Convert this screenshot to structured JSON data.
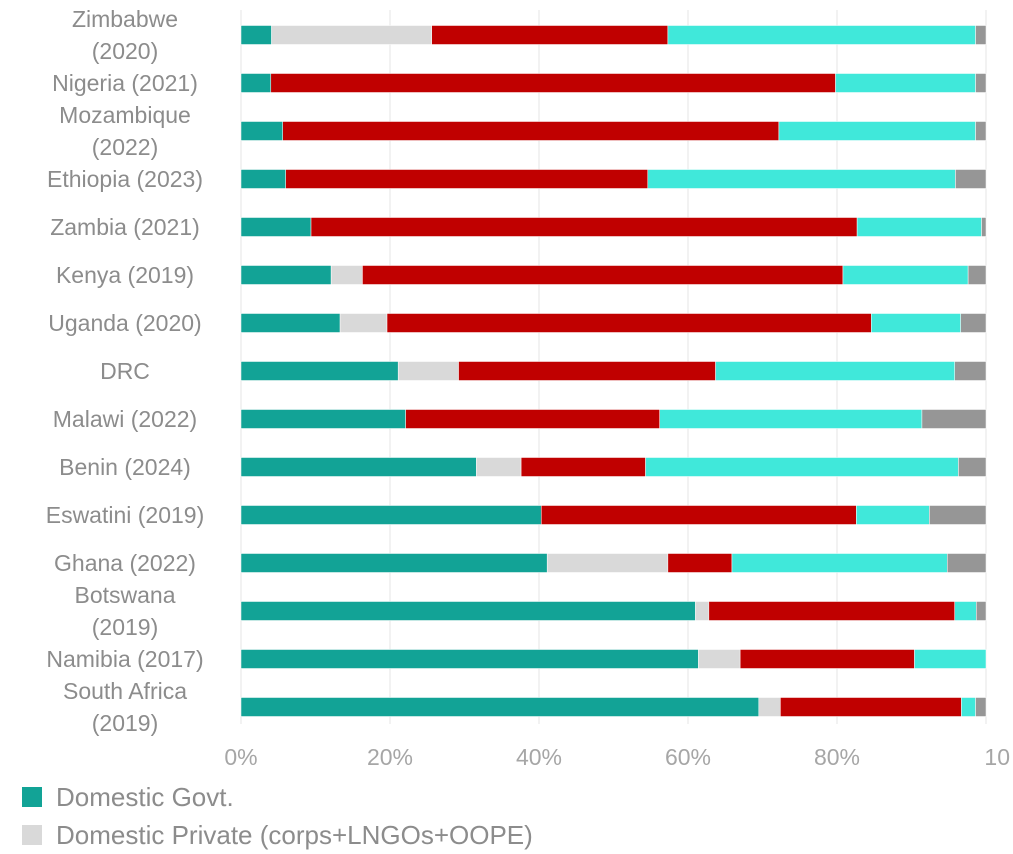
{
  "chart_data": {
    "type": "bar",
    "orientation": "horizontal",
    "stacked": "percent",
    "categories": [
      "Zimbabwe (2020)",
      "Nigeria (2021)",
      "Mozambique (2022)",
      "Ethiopia (2023)",
      "Zambia (2021)",
      "Kenya (2019)",
      "Uganda (2020)",
      "DRC",
      "Malawi (2022)",
      "Benin (2024)",
      "Eswatini (2019)",
      "Ghana (2022)",
      "Botswana (2019)",
      "Namibia (2017)",
      "South Africa (2019)"
    ],
    "category_lines": [
      [
        "Zimbabwe",
        "(2020)"
      ],
      [
        "Nigeria (2021)"
      ],
      [
        "Mozambique",
        "(2022)"
      ],
      [
        "Ethiopia (2023)"
      ],
      [
        "Zambia (2021)"
      ],
      [
        "Kenya (2019)"
      ],
      [
        "Uganda (2020)"
      ],
      [
        "DRC"
      ],
      [
        "Malawi (2022)"
      ],
      [
        "Benin (2024)"
      ],
      [
        "Eswatini (2019)"
      ],
      [
        "Ghana (2022)"
      ],
      [
        "Botswana",
        "(2019)"
      ],
      [
        "Namibia (2017)"
      ],
      [
        "South Africa",
        "(2019)"
      ]
    ],
    "series": [
      {
        "name": "Domestic Govt.",
        "color": "#12a396",
        "values": [
          4.1,
          4.0,
          5.6,
          6.0,
          9.4,
          12.1,
          13.3,
          21.1,
          22.1,
          31.6,
          40.3,
          41.1,
          61.0,
          61.4,
          69.5
        ]
      },
      {
        "name": "Domestic Private (corps+LNGOs+OOPE)",
        "color": "#d9d9d9",
        "values": [
          21.5,
          0.0,
          0.0,
          0.0,
          0.0,
          4.2,
          6.3,
          8.1,
          0.0,
          6.0,
          0.0,
          16.2,
          1.8,
          5.6,
          2.9
        ]
      },
      {
        "color": "#c00000",
        "values": [
          31.7,
          75.8,
          66.6,
          48.6,
          73.3,
          64.5,
          65.0,
          34.5,
          34.1,
          16.7,
          42.3,
          8.6,
          33.0,
          23.4,
          24.3
        ]
      },
      {
        "color": "#40e8da",
        "values": [
          41.3,
          18.8,
          26.4,
          41.3,
          16.7,
          16.8,
          12.0,
          32.1,
          35.2,
          42.0,
          9.8,
          28.9,
          2.9,
          9.6,
          1.9
        ]
      },
      {
        "color": "#969696",
        "values": [
          1.4,
          1.4,
          1.4,
          4.1,
          0.6,
          2.4,
          3.4,
          4.2,
          8.6,
          3.7,
          7.6,
          5.2,
          1.3,
          0.0,
          1.4
        ]
      }
    ],
    "x_ticks": [
      "0%",
      "20%",
      "40%",
      "60%",
      "80%",
      "10"
    ],
    "xlim": [
      0,
      100
    ],
    "grid": "vertical",
    "legend_position": "bottom"
  }
}
